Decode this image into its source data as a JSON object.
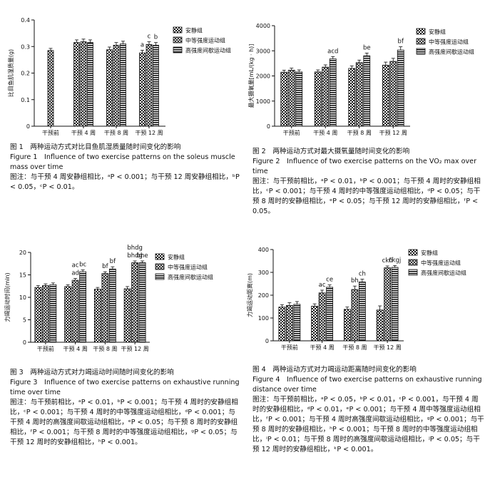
{
  "legend": [
    "安静组",
    "中等强度运动组",
    "高强度间歇运动组"
  ],
  "chart_data": [
    {
      "id": "fig1",
      "type": "bar",
      "ylabel": "比目鱼肌湿质量(g)",
      "yticks": [
        "0",
        "0.1",
        "0.2",
        "0.3",
        "0.4"
      ],
      "ylim": [
        0,
        0.4
      ],
      "categories": [
        "干预前",
        "干预 4 周",
        "干预 8 周",
        "干预 12 周"
      ],
      "series": [
        {
          "name": "安静组",
          "values": [
            null,
            0.315,
            0.288,
            0.276
          ],
          "errors": [
            null,
            0.01,
            0.01,
            0.01
          ]
        },
        {
          "name": "中等强度运动组",
          "values": [
            0.285,
            0.318,
            0.305,
            0.308
          ],
          "errors": [
            0.008,
            0.01,
            0.01,
            0.01
          ]
        },
        {
          "name": "高强度间歇运动组",
          "values": [
            null,
            0.315,
            0.31,
            0.305
          ],
          "errors": [
            null,
            0.01,
            0.01,
            0.01
          ]
        }
      ],
      "annotations": [
        {
          "category": 3,
          "series": 0,
          "text": "a"
        },
        {
          "category": 3,
          "series": 1,
          "text": "c"
        },
        {
          "category": 3,
          "series": 2,
          "text": "b"
        }
      ]
    },
    {
      "id": "fig2",
      "type": "bar",
      "ylabel": "最大摄氧量[mL/(kg · h)]",
      "yticks": [
        "0",
        "1000",
        "2000",
        "3000",
        "4000"
      ],
      "ylim": [
        0,
        4000
      ],
      "categories": [
        "干预前",
        "干预 4 周",
        "干预 8 周",
        "干预 12 周"
      ],
      "series": [
        {
          "name": "安静组",
          "values": [
            2150,
            2160,
            2300,
            2430
          ],
          "errors": [
            80,
            80,
            100,
            120
          ]
        },
        {
          "name": "中等强度运动组",
          "values": [
            2230,
            2350,
            2530,
            2580
          ],
          "errors": [
            80,
            90,
            100,
            120
          ]
        },
        {
          "name": "高强度间歇运动组",
          "values": [
            2160,
            2680,
            2800,
            3030
          ],
          "errors": [
            80,
            90,
            110,
            130
          ]
        }
      ],
      "annotations": [
        {
          "category": 1,
          "series": 2,
          "text": "acd"
        },
        {
          "category": 2,
          "series": 2,
          "text": "be"
        },
        {
          "category": 3,
          "series": 2,
          "text": "bf"
        }
      ]
    },
    {
      "id": "fig3",
      "type": "bar",
      "ylabel": "力竭运动时间(min)",
      "yticks": [
        "0",
        "5",
        "10",
        "15",
        "20"
      ],
      "ylim": [
        0,
        20
      ],
      "categories": [
        "干预前",
        "干预 4 周",
        "干预 8 周",
        "干预 12 周"
      ],
      "series": [
        {
          "name": "安静组",
          "values": [
            12.2,
            12.4,
            11.8,
            11.9
          ],
          "errors": [
            0.4,
            0.4,
            0.4,
            0.5
          ]
        },
        {
          "name": "中等强度运动组",
          "values": [
            12.6,
            13.8,
            15.3,
            17.7
          ],
          "errors": [
            0.4,
            0.4,
            0.4,
            0.4
          ]
        },
        {
          "name": "高强度间歇运动组",
          "values": [
            12.8,
            15.7,
            16.3,
            17.7
          ],
          "errors": [
            0.4,
            0.4,
            0.5,
            0.4
          ]
        }
      ],
      "annotations": [
        {
          "category": 1,
          "series": 1,
          "text": "ac"
        },
        {
          "category": 1,
          "series": 1,
          "text": "ad",
          "low": true
        },
        {
          "category": 1,
          "series": 2,
          "text": "bc"
        },
        {
          "category": 2,
          "series": 1,
          "text": "bf"
        },
        {
          "category": 2,
          "series": 2,
          "text": "bf"
        },
        {
          "category": 3,
          "series": 1,
          "text": "bhdg"
        },
        {
          "category": 3,
          "series": 1,
          "text": "bhdg",
          "low": true
        },
        {
          "category": 3,
          "series": 2,
          "text": "bhe",
          "low": true
        }
      ]
    },
    {
      "id": "fig4",
      "type": "bar",
      "ylabel": "力竭运动距离(m)",
      "yticks": [
        "0",
        "100",
        "200",
        "300",
        "400"
      ],
      "ylim": [
        0,
        400
      ],
      "categories": [
        "干预前",
        "干预 4 周",
        "干预 8 周",
        "干预 12 周"
      ],
      "series": [
        {
          "name": "安静组",
          "values": [
            148,
            152,
            138,
            135
          ],
          "errors": [
            10,
            10,
            10,
            18
          ]
        },
        {
          "name": "中等强度运动组",
          "values": [
            155,
            210,
            225,
            320
          ],
          "errors": [
            12,
            12,
            15,
            8
          ]
        },
        {
          "name": "高强度间歇运动组",
          "values": [
            160,
            235,
            258,
            322
          ],
          "errors": [
            12,
            10,
            12,
            8
          ]
        }
      ],
      "annotations": [
        {
          "category": 1,
          "series": 1,
          "text": "ac"
        },
        {
          "category": 1,
          "series": 2,
          "text": "ce"
        },
        {
          "category": 2,
          "series": 1,
          "text": "bh"
        },
        {
          "category": 2,
          "series": 2,
          "text": "ch"
        },
        {
          "category": 3,
          "series": 1,
          "text": "ckfi"
        },
        {
          "category": 3,
          "series": 2,
          "text": "ckgj"
        }
      ]
    }
  ],
  "captions": {
    "fig1": {
      "cn": "图 1　两种运动方式对比目鱼肌湿质量随时间变化的影响",
      "en": "Figure 1　Influence of two exercise patterns on the soleus muscle mass over time",
      "note": "图注：与干预 4 周安静组相比，ᵃP < 0.001；与干预 12 周安静组相比，ᵇP < 0.05，ᶜP < 0.01。"
    },
    "fig2": {
      "cn": "图 2　两种运动方式对最大摄氧量随时间变化的影响",
      "en": "Figure 2　Influence of two exercise patterns on the VO₂ max over time",
      "note": "图注：与干预前相比，ᵃP < 0.01，ᵇP < 0.001；与干预 4 周时的安静组相比，ᶜP < 0.001；与干预 4 周时的中等强度运动组相比，ᵈP < 0.05；与干预 8 周时的安静组相比，ᵉP < 0.05；与干预 12 周时的安静组相比，ᶠP < 0.05。"
    },
    "fig3": {
      "cn": "图 3　两种运动方式对力竭运动时间随时间变化的影响",
      "en": "Figure 3　Influence of two exercise patterns on exhaustive running time over time",
      "note": "图注：与干预前相比，ᵃP < 0.01，ᵇP < 0.001；与干预 4 周时的安静组相比，ᶜP < 0.001；与干预 4 周时的中等强度运动组相比，ᵈP < 0.001；与干预 4 周时的高强度间歇运动组相比，ᵉP < 0.05；与干预 8 周时的安静组相比，ᶠP < 0.001；与干预 8 周时的中等强度运动组相比，ᵍP < 0.05；与干预 12 周时的安静组相比，ʰP < 0.001。"
    },
    "fig4": {
      "cn": "图 4　两种运动方式对力竭运动距离随时间变化的影响",
      "en": "Figure 4　Influence of two exercise patterns on exhaustive running distance over time",
      "note": "图注：与干预前相比，ᵃP < 0.05，ᵇP < 0.01，ᶜP < 0.001，与干预 4 周时的安静组相比，ᵈP < 0.01，ᵉP < 0.001；与干预 4 周中等强度运动组相比，ᶠP < 0.001；与干预 4 周时高强度间歇运动组相比，ᵍP < 0.001；与干预 8 周时的安静组相比，ʰP < 0.001；与干预 8 周时的中等强度运动组相比，ⁱP < 0.01；与干预 8 周时的高强度间歇运动组相比，ʲP < 0.05；与干预 12 周时的安静组相比，ᵏP < 0.001。"
    }
  }
}
